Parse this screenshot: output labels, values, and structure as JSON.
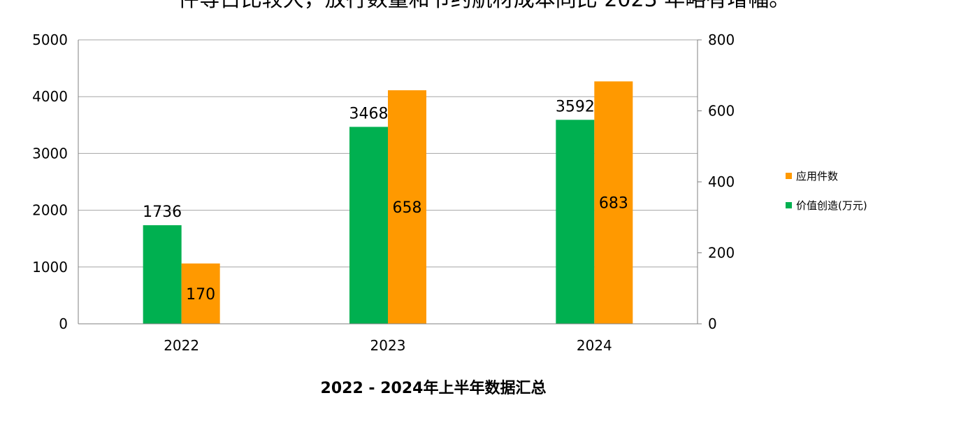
{
  "header": {
    "text": "件等占比较大，放行数量和节约航材成本同比 2023 年略有增幅。"
  },
  "chart_data": {
    "type": "bar",
    "title": "2022 - 2024年上半年数据汇总",
    "categories": [
      "2022",
      "2023",
      "2024"
    ],
    "y_left": {
      "ylim": [
        0,
        5000
      ],
      "ticks": [
        "0",
        "1000",
        "2000",
        "3000",
        "4000",
        "5000"
      ]
    },
    "y_right": {
      "ylim": [
        0,
        800
      ],
      "ticks": [
        "0",
        "200",
        "400",
        "600",
        "800"
      ]
    },
    "series": [
      {
        "name": "价值创造(万元)",
        "axis": "left",
        "color": "#00b050",
        "values": [
          1736,
          3468,
          3592
        ],
        "labels": [
          "1736",
          "3468",
          "3592"
        ]
      },
      {
        "name": "应用件数",
        "axis": "right",
        "color": "#ff9900",
        "values": [
          170,
          658,
          683
        ],
        "labels": [
          "170",
          "658",
          "683"
        ]
      }
    ],
    "grid": true,
    "legend": "right"
  }
}
